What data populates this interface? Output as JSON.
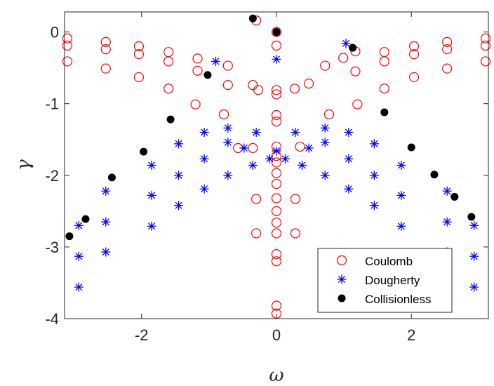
{
  "chart_data": {
    "type": "scatter",
    "xlabel": "ω",
    "ylabel": "γ",
    "xlim": [
      -3.1416,
      3.1416
    ],
    "ylim": [
      -4,
      0.28
    ],
    "xticks": [
      -2,
      0,
      2
    ],
    "xtick_labels": [
      "-2",
      "0",
      "2"
    ],
    "yticks": [
      0,
      -1,
      -2,
      -3,
      -4
    ],
    "ytick_labels": [
      "0",
      "-1",
      "-2",
      "-3",
      "-4"
    ],
    "grid": false,
    "legend_position": "bottom-right",
    "series": [
      {
        "name": "Coulomb",
        "marker": "open-circle",
        "color": "#ff0000",
        "points": [
          [
            -3.1,
            -0.09
          ],
          [
            -3.1,
            -0.19
          ],
          [
            -3.1,
            -0.41
          ],
          [
            -2.53,
            -0.14
          ],
          [
            -2.53,
            -0.24
          ],
          [
            -2.53,
            -0.51
          ],
          [
            -2.04,
            -0.2
          ],
          [
            -2.04,
            -0.31
          ],
          [
            -2.04,
            -0.63
          ],
          [
            -1.6,
            -0.28
          ],
          [
            -1.6,
            -0.41
          ],
          [
            -1.6,
            -0.79
          ],
          [
            -1.17,
            -0.37
          ],
          [
            -1.17,
            -0.54
          ],
          [
            -1.2,
            -1.01
          ],
          [
            -0.72,
            -0.47
          ],
          [
            -0.72,
            -0.74
          ],
          [
            -0.78,
            -1.15
          ],
          [
            -0.35,
            -0.74
          ],
          [
            -0.27,
            -0.81
          ],
          [
            -0.35,
            -1.62
          ],
          [
            -0.57,
            -1.62
          ],
          [
            -0.3,
            -2.33
          ],
          [
            -0.3,
            -2.81
          ],
          [
            -0.3,
            0.16
          ],
          [
            0,
            0
          ],
          [
            0,
            -0.19
          ],
          [
            0,
            -0.81
          ],
          [
            0,
            -0.87
          ],
          [
            0,
            -1.16
          ],
          [
            0,
            -1.25
          ],
          [
            0,
            -1.6
          ],
          [
            0,
            -1.73
          ],
          [
            0,
            -1.82
          ],
          [
            0,
            -1.97
          ],
          [
            0,
            -2.12
          ],
          [
            0,
            -2.32
          ],
          [
            0,
            -2.5
          ],
          [
            0,
            -2.66
          ],
          [
            0,
            -2.81
          ],
          [
            0,
            -3.1
          ],
          [
            0,
            -3.2
          ],
          [
            0,
            -3.82
          ],
          [
            0,
            -3.93
          ],
          [
            0.27,
            -0.79
          ],
          [
            0.48,
            -0.72
          ],
          [
            0.35,
            -1.6
          ],
          [
            0.28,
            -2.33
          ],
          [
            0.28,
            -2.81
          ],
          [
            0.72,
            -0.47
          ],
          [
            0.78,
            -1.15
          ],
          [
            0.99,
            -0.36
          ],
          [
            1.17,
            -0.27
          ],
          [
            1.17,
            -0.55
          ],
          [
            1.2,
            -1.01
          ],
          [
            1.6,
            -0.28
          ],
          [
            1.6,
            -0.41
          ],
          [
            1.6,
            -0.79
          ],
          [
            2.04,
            -0.2
          ],
          [
            2.04,
            -0.31
          ],
          [
            2.04,
            -0.63
          ],
          [
            2.53,
            -0.14
          ],
          [
            2.53,
            -0.24
          ],
          [
            2.53,
            -0.51
          ],
          [
            3.1,
            -0.09
          ],
          [
            3.1,
            -0.19
          ],
          [
            3.1,
            -0.41
          ]
        ]
      },
      {
        "name": "Dougherty",
        "marker": "asterisk",
        "color": "#0000ff",
        "points": [
          [
            0,
            0
          ],
          [
            0,
            -0.38
          ],
          [
            -0.9,
            -0.41
          ],
          [
            1.03,
            -0.16
          ],
          [
            -2.93,
            -2.7
          ],
          [
            -2.93,
            -3.13
          ],
          [
            -2.93,
            -3.56
          ],
          [
            -2.53,
            -2.22
          ],
          [
            -2.53,
            -2.65
          ],
          [
            -2.53,
            -3.07
          ],
          [
            -1.85,
            -1.86
          ],
          [
            -1.85,
            -2.28
          ],
          [
            -1.85,
            -2.71
          ],
          [
            -1.45,
            -1.56
          ],
          [
            -1.45,
            -2.0
          ],
          [
            -1.45,
            -2.42
          ],
          [
            -1.07,
            -1.4
          ],
          [
            -1.07,
            -1.77
          ],
          [
            -1.07,
            -2.19
          ],
          [
            -0.72,
            -1.34
          ],
          [
            -0.72,
            -1.54
          ],
          [
            -0.72,
            -2.0
          ],
          [
            -0.48,
            -1.62
          ],
          [
            -0.35,
            -1.86
          ],
          [
            -0.3,
            -1.4
          ],
          [
            -0.1,
            -1.77
          ],
          [
            0,
            -1.66
          ],
          [
            0.13,
            -1.77
          ],
          [
            0.28,
            -1.4
          ],
          [
            0.38,
            -1.86
          ],
          [
            0.48,
            -1.62
          ],
          [
            0.72,
            -1.34
          ],
          [
            0.72,
            -1.54
          ],
          [
            0.72,
            -2.0
          ],
          [
            1.07,
            -1.4
          ],
          [
            1.07,
            -1.77
          ],
          [
            1.07,
            -2.19
          ],
          [
            1.45,
            -1.56
          ],
          [
            1.45,
            -2.0
          ],
          [
            1.45,
            -2.42
          ],
          [
            1.85,
            -1.86
          ],
          [
            1.85,
            -2.28
          ],
          [
            1.85,
            -2.71
          ],
          [
            2.53,
            -2.22
          ],
          [
            2.53,
            -2.65
          ],
          [
            2.53,
            -3.07
          ],
          [
            2.93,
            -2.7
          ],
          [
            2.93,
            -3.13
          ],
          [
            2.93,
            -3.56
          ]
        ]
      },
      {
        "name": "Collisionless",
        "marker": "filled-circle",
        "color": "#000000",
        "points": [
          [
            -3.07,
            -2.85
          ],
          [
            -2.83,
            -2.61
          ],
          [
            -2.44,
            -2.03
          ],
          [
            -1.97,
            -1.67
          ],
          [
            -1.57,
            -1.22
          ],
          [
            -1.02,
            -0.6
          ],
          [
            -0.35,
            0.19
          ],
          [
            0,
            0
          ],
          [
            1.13,
            -0.22
          ],
          [
            1.6,
            -1.12
          ],
          [
            2.0,
            -1.61
          ],
          [
            2.34,
            -1.99
          ],
          [
            2.64,
            -2.3
          ],
          [
            2.89,
            -2.58
          ]
        ]
      }
    ]
  }
}
